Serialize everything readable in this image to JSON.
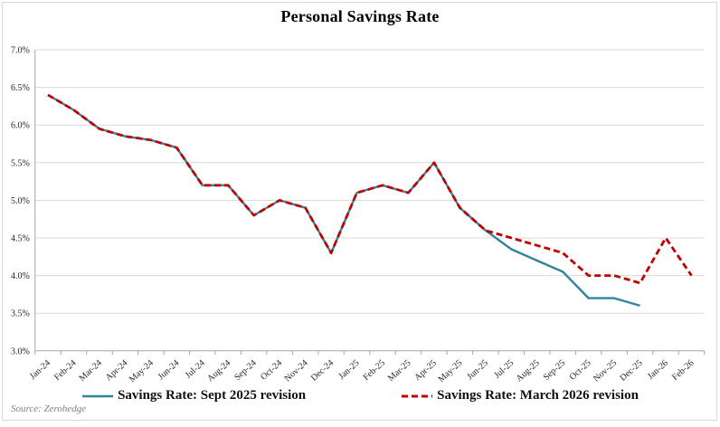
{
  "title": "Personal Savings Rate",
  "source": "Source: Zerohedge",
  "chart_data": {
    "type": "line",
    "title": "Personal Savings Rate",
    "xlabel": "",
    "ylabel": "",
    "ylim": [
      3.0,
      7.0
    ],
    "ytick_step": 0.5,
    "ytick_format": "percent",
    "grid": true,
    "legend_position": "bottom",
    "categories": [
      "Jan-24",
      "Feb-24",
      "Mar-24",
      "Apr-24",
      "May-24",
      "Jun-24",
      "Jul-24",
      "Aug-24",
      "Sep-24",
      "Oct-24",
      "Nov-24",
      "Dec-24",
      "Jan-25",
      "Feb-25",
      "Mar-25",
      "Apr-25",
      "May-25",
      "Jun-25",
      "Jul-25",
      "Aug-25",
      "Sep-25",
      "Oct-25",
      "Nov-25",
      "Dec-25",
      "Jan-26",
      "Feb-26"
    ],
    "series": [
      {
        "name": "Savings Rate: Sept 2025 revision",
        "color": "#31859b",
        "style": "solid",
        "values": [
          6.4,
          6.2,
          5.95,
          5.85,
          5.8,
          5.7,
          5.2,
          5.2,
          4.8,
          5.0,
          4.9,
          4.3,
          5.1,
          5.2,
          5.1,
          5.5,
          4.9,
          4.6,
          4.35,
          4.2,
          4.05,
          3.7,
          3.7,
          3.6
        ]
      },
      {
        "name": "Savings Rate: March 2026 revision",
        "color": "#c00000",
        "style": "dashed",
        "values": [
          6.4,
          6.2,
          5.95,
          5.85,
          5.8,
          5.7,
          5.2,
          5.2,
          4.8,
          5.0,
          4.9,
          4.3,
          5.1,
          5.2,
          5.1,
          5.5,
          4.9,
          4.6,
          4.5,
          4.4,
          4.3,
          4.0,
          4.0,
          3.9,
          4.5,
          4.0
        ]
      }
    ],
    "colors": {
      "gridline": "#d9d9d9",
      "axis": "#a6a6a6",
      "tick_label": "#262626"
    }
  }
}
